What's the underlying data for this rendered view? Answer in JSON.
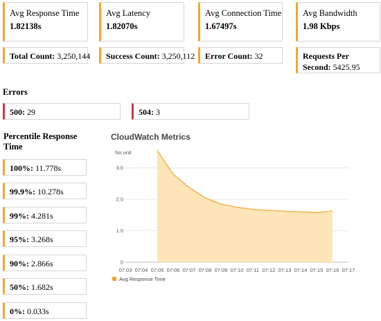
{
  "summary": [
    {
      "label": "Avg Response Time",
      "value": "1.82138s"
    },
    {
      "label": "Avg Latency",
      "value": "1.82070s"
    },
    {
      "label": "Avg Connection Time",
      "value": "1.67497s"
    },
    {
      "label": "Avg Bandwidth",
      "value": "1.98 Kbps"
    }
  ],
  "counts": {
    "total_label": "Total Count:",
    "total_value": "3,250,144",
    "success_label": "Success Count:",
    "success_value": "3,250,112",
    "error_label": "Error Count:",
    "error_value": "32",
    "rps_label_line1": "Requests Per",
    "rps_label_line2": "Second:",
    "rps_value": "5425.95"
  },
  "errors": {
    "title": "Errors",
    "items": [
      {
        "code": "500:",
        "count": "29"
      },
      {
        "code": "504:",
        "count": "3"
      }
    ]
  },
  "percentiles": {
    "title_line1": "Percentile Response",
    "title_line2": "Time",
    "items": [
      {
        "label": "100%:",
        "value": "11.778s"
      },
      {
        "label": "99.9%:",
        "value": "10.278s"
      },
      {
        "label": "99%:",
        "value": "4.281s"
      },
      {
        "label": "95%:",
        "value": "3.268s"
      },
      {
        "label": "90%:",
        "value": "2.866s"
      },
      {
        "label": "50%:",
        "value": "1.682s"
      },
      {
        "label": "0%:",
        "value": "0.033s"
      }
    ]
  },
  "colors": {
    "accent": "#f0a830",
    "error": "#d0344a",
    "area_fill": "#fde5b8",
    "area_line": "#f2b54e"
  },
  "chart_data": {
    "type": "area",
    "title": "CloudWatch Metrics",
    "unit_label": "No unit",
    "x": [
      "07:03",
      "07:04",
      "07:05",
      "07:06",
      "07:07",
      "07:08",
      "07:09",
      "07:10",
      "07:11",
      "07:12",
      "07:13",
      "07:14",
      "07:15",
      "07:16",
      "07:17"
    ],
    "y_ticks": [
      0,
      1.0,
      2.0,
      3.0
    ],
    "ylim": [
      0,
      3.5
    ],
    "grid": true,
    "legend_position": "bottom-left",
    "series": [
      {
        "name": "Avg Response Time",
        "points": [
          {
            "x": "07:05",
            "y": 3.55
          },
          {
            "x": "07:06",
            "y": 2.8
          },
          {
            "x": "07:07",
            "y": 2.38
          },
          {
            "x": "07:08",
            "y": 2.05
          },
          {
            "x": "07:09",
            "y": 1.85
          },
          {
            "x": "07:10",
            "y": 1.75
          },
          {
            "x": "07:11",
            "y": 1.68
          },
          {
            "x": "07:12",
            "y": 1.65
          },
          {
            "x": "07:13",
            "y": 1.62
          },
          {
            "x": "07:14",
            "y": 1.6
          },
          {
            "x": "07:15",
            "y": 1.58
          },
          {
            "x": "07:16",
            "y": 1.63
          }
        ]
      }
    ]
  }
}
